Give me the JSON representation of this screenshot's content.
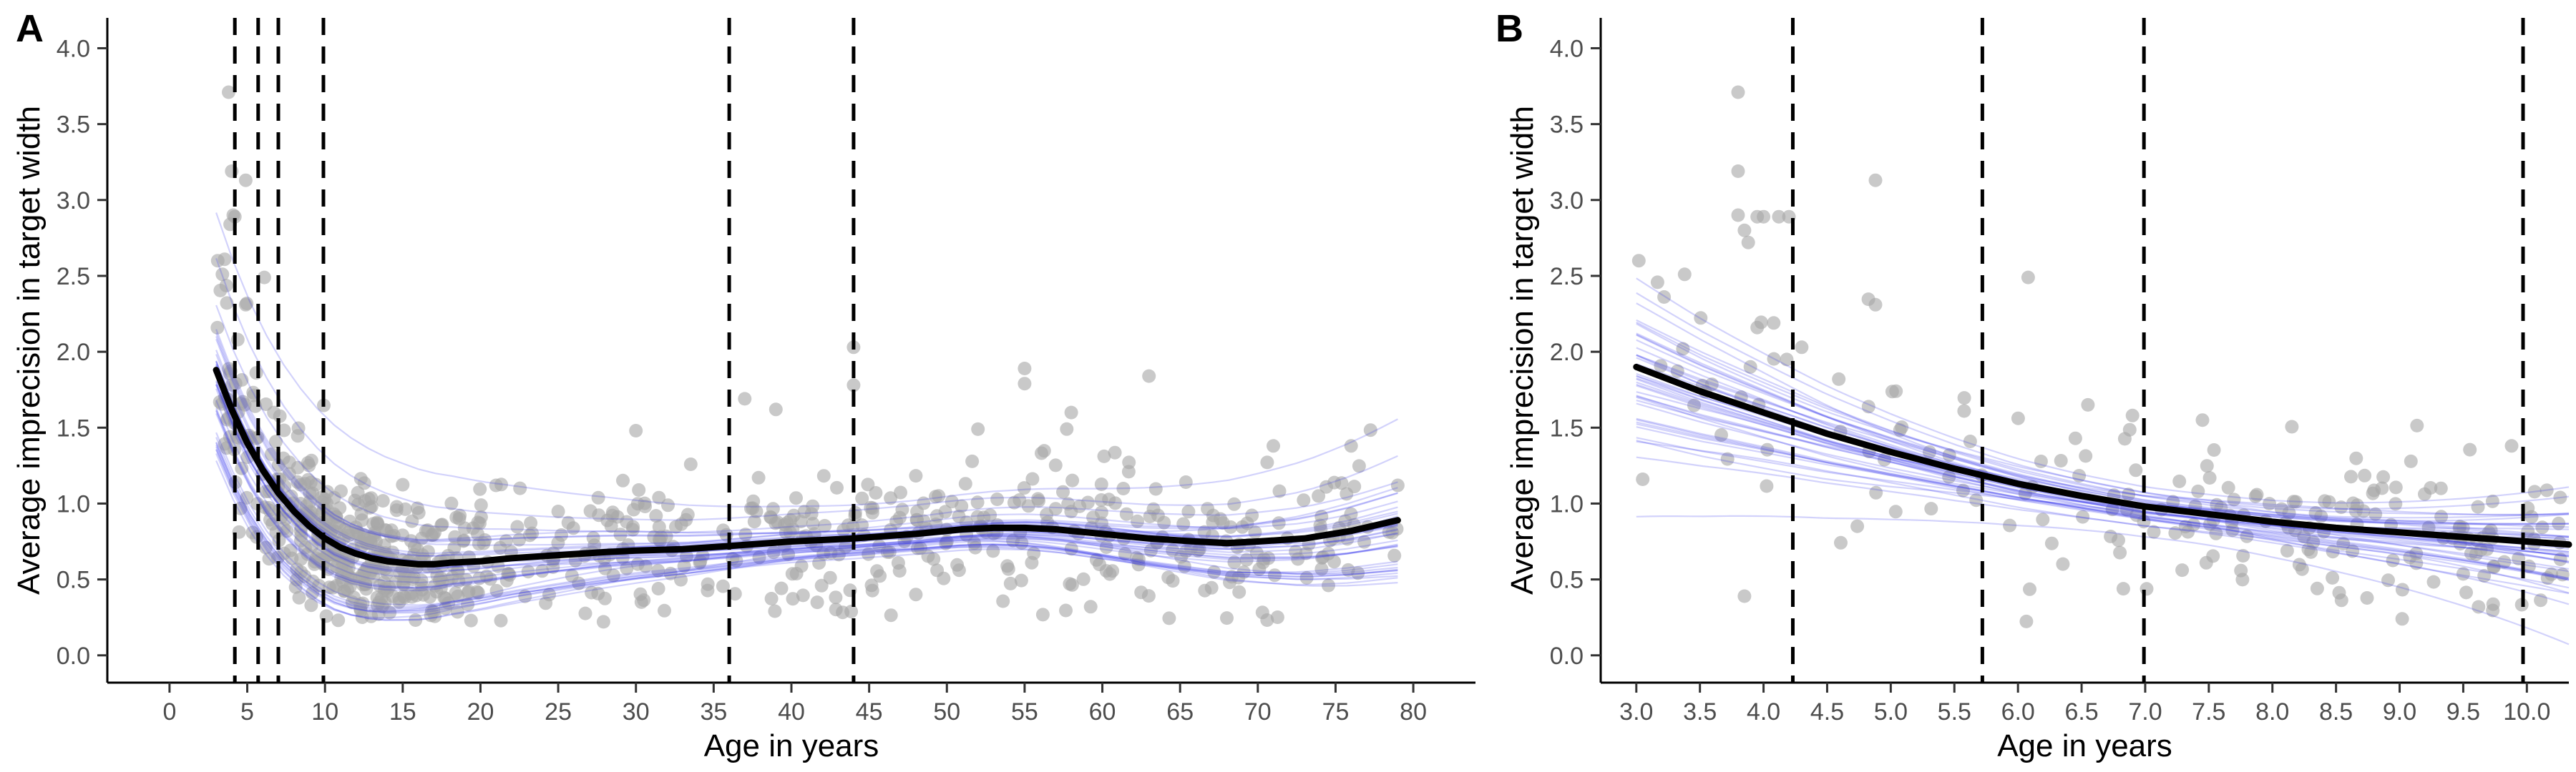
{
  "chart_data": [
    {
      "panel": "A",
      "type": "scatter",
      "xlabel": "Age in years",
      "ylabel": "Average imprecision in target width",
      "xlim": [
        -4,
        84
      ],
      "ylim": [
        -0.18,
        4.2
      ],
      "xticks": [
        0,
        5,
        10,
        15,
        20,
        25,
        30,
        35,
        40,
        45,
        50,
        55,
        60,
        65,
        70,
        75,
        80
      ],
      "yticks": [
        0.0,
        0.5,
        1.0,
        1.5,
        2.0,
        2.5,
        3.0,
        3.5,
        4.0
      ],
      "xtick_labels": [
        "0",
        "5",
        "10",
        "15",
        "20",
        "25",
        "30",
        "35",
        "40",
        "45",
        "50",
        "55",
        "60",
        "65",
        "70",
        "75",
        "80"
      ],
      "ytick_labels": [
        "0.0",
        "0.5",
        "1.0",
        "1.5",
        "2.0",
        "2.5",
        "3.0",
        "3.5",
        "4.0"
      ],
      "vlines": [
        4.2,
        5.7,
        7.0,
        9.9,
        36,
        44
      ],
      "grid": false,
      "colors": {
        "points": "#a8a8a8",
        "fit": "#000000",
        "bootstrap": "#3333ee",
        "vlines": "#000000"
      },
      "fit": {
        "x": [
          3,
          4,
          5,
          6,
          7,
          8,
          9,
          10,
          11,
          12,
          13,
          14,
          15,
          16,
          17,
          18,
          20,
          22,
          25,
          28,
          30,
          33,
          36,
          40,
          44,
          48,
          51,
          53,
          55,
          57,
          60,
          63,
          66,
          68,
          70,
          73,
          76,
          79
        ],
        "y": [
          1.88,
          1.62,
          1.4,
          1.22,
          1.07,
          0.95,
          0.85,
          0.77,
          0.71,
          0.67,
          0.64,
          0.62,
          0.61,
          0.6,
          0.6,
          0.61,
          0.62,
          0.64,
          0.66,
          0.68,
          0.69,
          0.7,
          0.72,
          0.75,
          0.77,
          0.8,
          0.83,
          0.84,
          0.84,
          0.83,
          0.8,
          0.77,
          0.75,
          0.74,
          0.75,
          0.77,
          0.82,
          0.89
        ]
      },
      "bootstrap_count": 40,
      "point_seed": 7,
      "point_groups": [
        {
          "x_range": [
            3,
            4.5
          ],
          "count": 28
        },
        {
          "x_range": [
            4.5,
            7
          ],
          "count": 40
        },
        {
          "x_range": [
            7,
            10
          ],
          "count": 90
        },
        {
          "x_range": [
            10,
            14
          ],
          "count": 150
        },
        {
          "x_range": [
            14,
            20
          ],
          "count": 120
        },
        {
          "x_range": [
            20,
            79
          ],
          "count": 430
        }
      ],
      "highlight_points": [
        {
          "x": 3.8,
          "y": 3.71
        },
        {
          "x": 4.0,
          "y": 3.19
        },
        {
          "x": 4.1,
          "y": 2.9
        },
        {
          "x": 3.1,
          "y": 2.6
        },
        {
          "x": 4.9,
          "y": 3.13
        },
        {
          "x": 3.9,
          "y": 2.84
        },
        {
          "x": 4.2,
          "y": 2.89
        },
        {
          "x": 6.1,
          "y": 2.49
        },
        {
          "x": 3.4,
          "y": 2.51
        },
        {
          "x": 4.9,
          "y": 2.31
        },
        {
          "x": 44,
          "y": 2.03
        },
        {
          "x": 44,
          "y": 1.78
        },
        {
          "x": 37,
          "y": 1.69
        },
        {
          "x": 55,
          "y": 1.89
        },
        {
          "x": 55,
          "y": 1.79
        },
        {
          "x": 63,
          "y": 1.84
        },
        {
          "x": 30,
          "y": 1.48
        },
        {
          "x": 52,
          "y": 1.49
        },
        {
          "x": 58,
          "y": 1.6
        },
        {
          "x": 39,
          "y": 1.62
        },
        {
          "x": 21,
          "y": 1.12
        },
        {
          "x": 71,
          "y": 1.38
        },
        {
          "x": 76,
          "y": 1.38
        },
        {
          "x": 79,
          "y": 1.12
        }
      ]
    },
    {
      "panel": "B",
      "type": "scatter",
      "xlabel": "Age in years",
      "ylabel": "Average imprecision in target width",
      "xlim": [
        2.72,
        10.33
      ],
      "ylim": [
        -0.18,
        4.2
      ],
      "xticks": [
        3.0,
        3.5,
        4.0,
        4.5,
        5.0,
        5.5,
        6.0,
        6.5,
        7.0,
        7.5,
        8.0,
        8.5,
        9.0,
        9.5,
        10.0
      ],
      "yticks": [
        0.0,
        0.5,
        1.0,
        1.5,
        2.0,
        2.5,
        3.0,
        3.5,
        4.0
      ],
      "xtick_labels": [
        "3.0",
        "3.5",
        "4.0",
        "4.5",
        "5.0",
        "5.5",
        "6.0",
        "6.5",
        "7.0",
        "7.5",
        "8.0",
        "8.5",
        "9.0",
        "9.5",
        "10.0"
      ],
      "ytick_labels": [
        "0.0",
        "0.5",
        "1.0",
        "1.5",
        "2.0",
        "2.5",
        "3.0",
        "3.5",
        "4.0"
      ],
      "vlines": [
        4.23,
        5.72,
        6.99,
        9.97
      ],
      "grid": false,
      "colors": {
        "points": "#a8a8a8",
        "fit": "#000000",
        "bootstrap": "#3333ee",
        "vlines": "#000000"
      },
      "fit": {
        "x": [
          3.0,
          3.5,
          4.0,
          4.5,
          5.0,
          5.5,
          6.0,
          6.5,
          7.0,
          7.5,
          8.0,
          8.5,
          9.0,
          9.5,
          10.0,
          10.33
        ],
        "y": [
          1.9,
          1.74,
          1.6,
          1.46,
          1.34,
          1.23,
          1.13,
          1.05,
          0.98,
          0.93,
          0.88,
          0.84,
          0.81,
          0.78,
          0.75,
          0.73
        ]
      },
      "bootstrap_count": 40,
      "point_seed": 21,
      "point_groups": [
        {
          "x_range": [
            3.0,
            4.5
          ],
          "count": 20
        },
        {
          "x_range": [
            4.5,
            6.0
          ],
          "count": 25
        },
        {
          "x_range": [
            6.0,
            7.5
          ],
          "count": 40
        },
        {
          "x_range": [
            7.5,
            9.0
          ],
          "count": 70
        },
        {
          "x_range": [
            9.0,
            10.33
          ],
          "count": 60
        }
      ],
      "highlight_points": [
        {
          "x": 3.8,
          "y": 3.71
        },
        {
          "x": 3.8,
          "y": 3.19
        },
        {
          "x": 3.8,
          "y": 2.9
        },
        {
          "x": 3.85,
          "y": 2.8
        },
        {
          "x": 3.88,
          "y": 2.72
        },
        {
          "x": 3.95,
          "y": 2.89
        },
        {
          "x": 4.0,
          "y": 2.89
        },
        {
          "x": 4.12,
          "y": 2.89
        },
        {
          "x": 4.2,
          "y": 2.89
        },
        {
          "x": 3.02,
          "y": 2.6
        },
        {
          "x": 3.38,
          "y": 2.51
        },
        {
          "x": 6.08,
          "y": 2.49
        },
        {
          "x": 4.88,
          "y": 3.13
        },
        {
          "x": 4.88,
          "y": 2.31
        },
        {
          "x": 3.95,
          "y": 2.16
        },
        {
          "x": 4.08,
          "y": 2.19
        },
        {
          "x": 4.3,
          "y": 2.03
        },
        {
          "x": 3.05,
          "y": 1.16
        },
        {
          "x": 3.85,
          "y": 0.39
        },
        {
          "x": 7.48,
          "y": 0.61
        },
        {
          "x": 9.02,
          "y": 0.24
        },
        {
          "x": 9.88,
          "y": 1.38
        },
        {
          "x": 6.55,
          "y": 1.65
        },
        {
          "x": 7.45,
          "y": 1.55
        },
        {
          "x": 6.9,
          "y": 1.58
        }
      ]
    }
  ],
  "panels": [
    {
      "tag": "A"
    },
    {
      "tag": "B"
    }
  ]
}
